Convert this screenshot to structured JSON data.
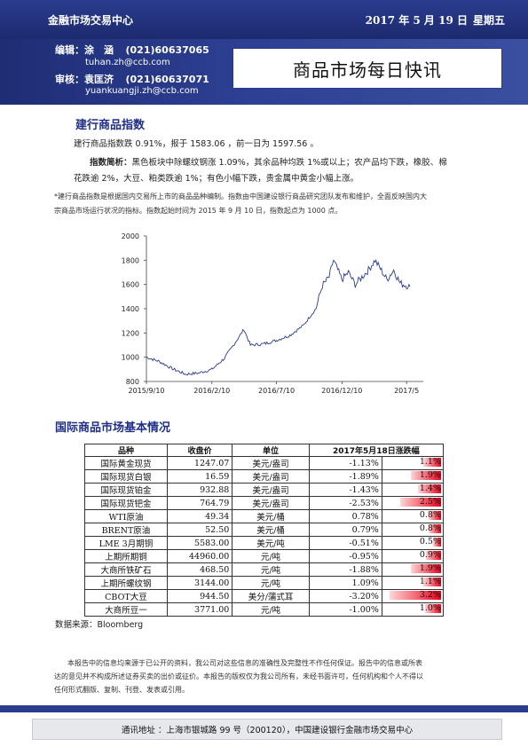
{
  "header": {
    "org": "金融市场交易中心",
    "date": "2017 年 5 月 19 日",
    "weekday": "星期五",
    "editor_label": "编辑：",
    "editor_name": "涂　涵",
    "editor_phone": "(021)60637065",
    "editor_email": "tuhan.zh@ccb.com",
    "reviewer_label": "审核：",
    "reviewer_name": "袁匡济",
    "reviewer_phone": "(021)60637071",
    "reviewer_email": "yuankuangji.zh@ccb.com",
    "title": "商品市场每日快讯"
  },
  "section1": {
    "title": "建行商品指数",
    "para1": "建行商品指数跌 0.91%，报于 1583.06 ，前一日为 1597.56 。",
    "para2_label": "指数简析：",
    "para2_line1": "黑色板块中除螺纹钢涨 1.09%，其余品种均跌 1%或以上；农产品均下跌，橡胶、棉",
    "para2_line2": "花跌逾 2%，大豆、粕类跌逾 1%；有色小幅下跌，贵金属中黄金小幅上涨。",
    "note_line1": "*建行商品指数是根据国内交易所上市的商品品种编制。指数由中国建设银行商品研究团队发布和维护，全面反映国内大",
    "note_line2": "宗商品市场运行状况的指标。指数起始时间为 2015 年 9 月 10 日，指数起点为 1000 点。"
  },
  "chart_data": {
    "type": "line",
    "title": "",
    "xlabel": "",
    "ylabel": "",
    "ylim": [
      800,
      2000
    ],
    "yticks": [
      "2000",
      "1800",
      "1600",
      "1400",
      "1200",
      "1000",
      "800"
    ],
    "xticks": [
      "2015/9/10",
      "2016/2/10",
      "2016/7/10",
      "2016/12/10",
      "2017/5"
    ],
    "x": [
      "2015-09-10",
      "2015-10-10",
      "2015-11-10",
      "2015-12-10",
      "2016-01-10",
      "2016-02-10",
      "2016-03-10",
      "2016-04-10",
      "2016-04-25",
      "2016-05-10",
      "2016-06-10",
      "2016-07-10",
      "2016-08-10",
      "2016-09-10",
      "2016-10-10",
      "2016-10-25",
      "2016-11-10",
      "2016-11-20",
      "2016-12-10",
      "2016-12-25",
      "2017-01-10",
      "2017-02-10",
      "2017-02-25",
      "2017-03-10",
      "2017-03-25",
      "2017-04-10",
      "2017-04-25",
      "2017-05-18"
    ],
    "series": [
      {
        "values": [
          1000,
          965,
          905,
          860,
          870,
          900,
          990,
          1150,
          1230,
          1100,
          1110,
          1140,
          1180,
          1260,
          1400,
          1590,
          1660,
          1800,
          1640,
          1700,
          1600,
          1720,
          1800,
          1730,
          1640,
          1720,
          1610,
          1583
        ]
      }
    ],
    "line_color": "#2b3c8f"
  },
  "section2": {
    "title": "国际商品市场基本情况",
    "headers": [
      "品种",
      "收盘价",
      "单位",
      "2017年5月18日涨跌幅"
    ],
    "rows": [
      {
        "name": "国际黄金现货",
        "close": "1247.07",
        "unit": "美元/盎司",
        "pct": "-1.13%",
        "bar_label": "1.1%",
        "bar_value": 1.13
      },
      {
        "name": "国际现货白银",
        "close": "16.59",
        "unit": "美元/盎司",
        "pct": "-1.89%",
        "bar_label": "1.9%",
        "bar_value": 1.89
      },
      {
        "name": "国际现货铂金",
        "close": "932.88",
        "unit": "美元/盎司",
        "pct": "-1.43%",
        "bar_label": "1.4%",
        "bar_value": 1.43
      },
      {
        "name": "国际现货钯金",
        "close": "764.79",
        "unit": "美元/盎司",
        "pct": "-2.53%",
        "bar_label": "2.5%",
        "bar_value": 2.53
      },
      {
        "name": "WTI原油",
        "close": "49.34",
        "unit": "美元/桶",
        "pct": "0.78%",
        "bar_label": "0.8%",
        "bar_value": 0.78
      },
      {
        "name": "BRENT原油",
        "close": "52.50",
        "unit": "美元/桶",
        "pct": "0.79%",
        "bar_label": "0.8%",
        "bar_value": 0.79
      },
      {
        "name": "LME 3月期铜",
        "close": "5583.00",
        "unit": "美元/吨",
        "pct": "-0.51%",
        "bar_label": "0.5%",
        "bar_value": 0.51
      },
      {
        "name": "上期所期铜",
        "close": "44960.00",
        "unit": "元/吨",
        "pct": "-0.95%",
        "bar_label": "0.9%",
        "bar_value": 0.95
      },
      {
        "name": "大商所铁矿石",
        "close": "468.50",
        "unit": "元/吨",
        "pct": "-1.88%",
        "bar_label": "1.9%",
        "bar_value": 1.88
      },
      {
        "name": "上期所螺纹钢",
        "close": "3144.00",
        "unit": "元/吨",
        "pct": "1.09%",
        "bar_label": "1.1%",
        "bar_value": 1.09
      },
      {
        "name": "CBOT大豆",
        "close": "944.50",
        "unit": "美分/蒲式耳",
        "pct": "-3.20%",
        "bar_label": "3.2%",
        "bar_value": 3.2
      },
      {
        "name": "大商所豆一",
        "close": "3771.00",
        "unit": "元/吨",
        "pct": "-1.00%",
        "bar_label": "1.0%",
        "bar_value": 1.0
      }
    ],
    "source": "数据来源：Bloomberg"
  },
  "disclaimer": {
    "line1": "本报告中的信息均来源于已公开的资料，我公司对这些信息的准确性及完整性不作任何保证。报告中的信息或所表",
    "line2": "达的意见并不构成所述证券买卖的出价或征价。本报告的版权仅为我公司所有，未经书面许可，任何机构和个人不得以",
    "line3": "任何形式翻版、复制、刊登、发表或引用。"
  },
  "footer": {
    "address": "通讯地址 ：上海市银城路 99 号（200120），中国建设银行金融市场交易中心"
  }
}
